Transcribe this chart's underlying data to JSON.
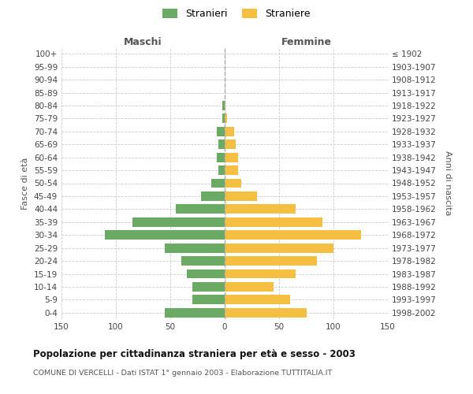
{
  "age_groups": [
    "0-4",
    "5-9",
    "10-14",
    "15-19",
    "20-24",
    "25-29",
    "30-34",
    "35-39",
    "40-44",
    "45-49",
    "50-54",
    "55-59",
    "60-64",
    "65-69",
    "70-74",
    "75-79",
    "80-84",
    "85-89",
    "90-94",
    "95-99",
    "100+"
  ],
  "birth_years": [
    "1998-2002",
    "1993-1997",
    "1988-1992",
    "1983-1987",
    "1978-1982",
    "1973-1977",
    "1968-1972",
    "1963-1967",
    "1958-1962",
    "1953-1957",
    "1948-1952",
    "1943-1947",
    "1938-1942",
    "1933-1937",
    "1928-1932",
    "1923-1927",
    "1918-1922",
    "1913-1917",
    "1908-1912",
    "1903-1907",
    "≤ 1902"
  ],
  "maschi": [
    55,
    30,
    30,
    35,
    40,
    55,
    110,
    85,
    45,
    22,
    12,
    6,
    7,
    6,
    7,
    2,
    2,
    0,
    0,
    0,
    0
  ],
  "femmine": [
    75,
    60,
    45,
    65,
    85,
    100,
    125,
    90,
    65,
    30,
    15,
    12,
    12,
    10,
    9,
    2,
    1,
    0,
    0,
    0,
    0
  ],
  "maschi_color": "#6aaa64",
  "femmine_color": "#f5bf42",
  "title": "Popolazione per cittadinanza straniera per età e sesso - 2003",
  "subtitle": "COMUNE DI VERCELLI - Dati ISTAT 1° gennaio 2003 - Elaborazione TUTTITALIA.IT",
  "ylabel_left": "Fasce di età",
  "ylabel_right": "Anni di nascita",
  "label_maschi": "Maschi",
  "label_femmine": "Femmine",
  "legend_stranieri": "Stranieri",
  "legend_straniere": "Straniere",
  "xlim": 150,
  "background_color": "#ffffff",
  "grid_color": "#cccccc"
}
